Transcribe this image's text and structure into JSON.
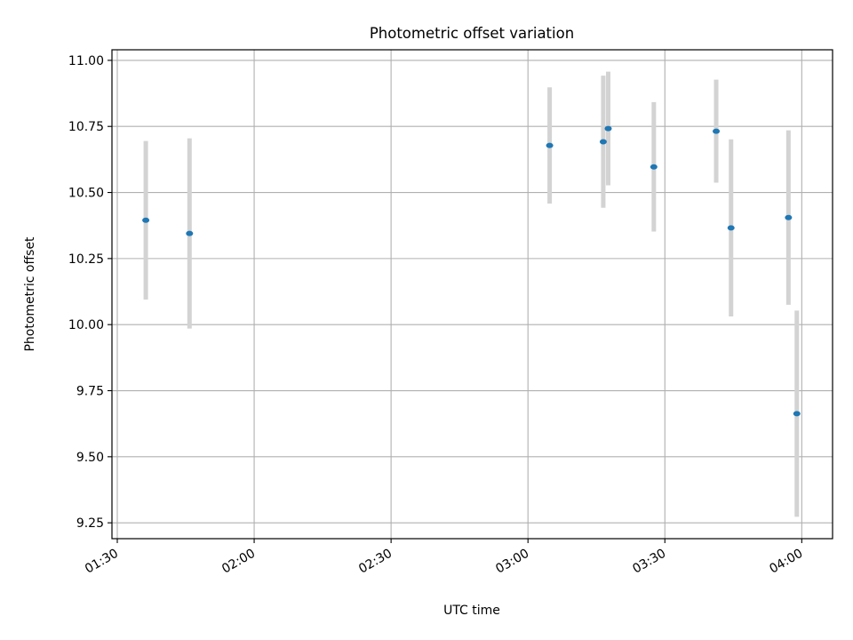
{
  "chart_data": {
    "type": "scatter",
    "title": "Photometric offset variation",
    "xlabel": "UTC time",
    "ylabel": "Photometric offset",
    "x_ticks": [
      "01:30",
      "02:00",
      "02:30",
      "03:00",
      "03:30",
      "04:00"
    ],
    "y_ticks": [
      "9.25",
      "9.50",
      "9.75",
      "10.00",
      "10.25",
      "10.50",
      "10.75",
      "11.00"
    ],
    "xlim": [
      "01:28:50",
      "04:06:45"
    ],
    "ylim": [
      9.19,
      11.04
    ],
    "grid": true,
    "colors": {
      "point": "#1f77b4",
      "errorbar": "#d3d3d3",
      "grid": "#b0b0b0"
    },
    "points": [
      {
        "x": "01:36:15",
        "y": 10.395,
        "err": 0.3
      },
      {
        "x": "01:45:50",
        "y": 10.345,
        "err": 0.36
      },
      {
        "x": "03:04:45",
        "y": 10.678,
        "err": 0.22
      },
      {
        "x": "03:16:30",
        "y": 10.692,
        "err": 0.25
      },
      {
        "x": "03:17:35",
        "y": 10.742,
        "err": 0.215
      },
      {
        "x": "03:27:35",
        "y": 10.597,
        "err": 0.245
      },
      {
        "x": "03:41:15",
        "y": 10.732,
        "err": 0.195
      },
      {
        "x": "03:44:30",
        "y": 10.366,
        "err": 0.335
      },
      {
        "x": "03:57:05",
        "y": 10.405,
        "err": 0.33
      },
      {
        "x": "03:58:55",
        "y": 9.663,
        "err": 0.39
      }
    ]
  }
}
